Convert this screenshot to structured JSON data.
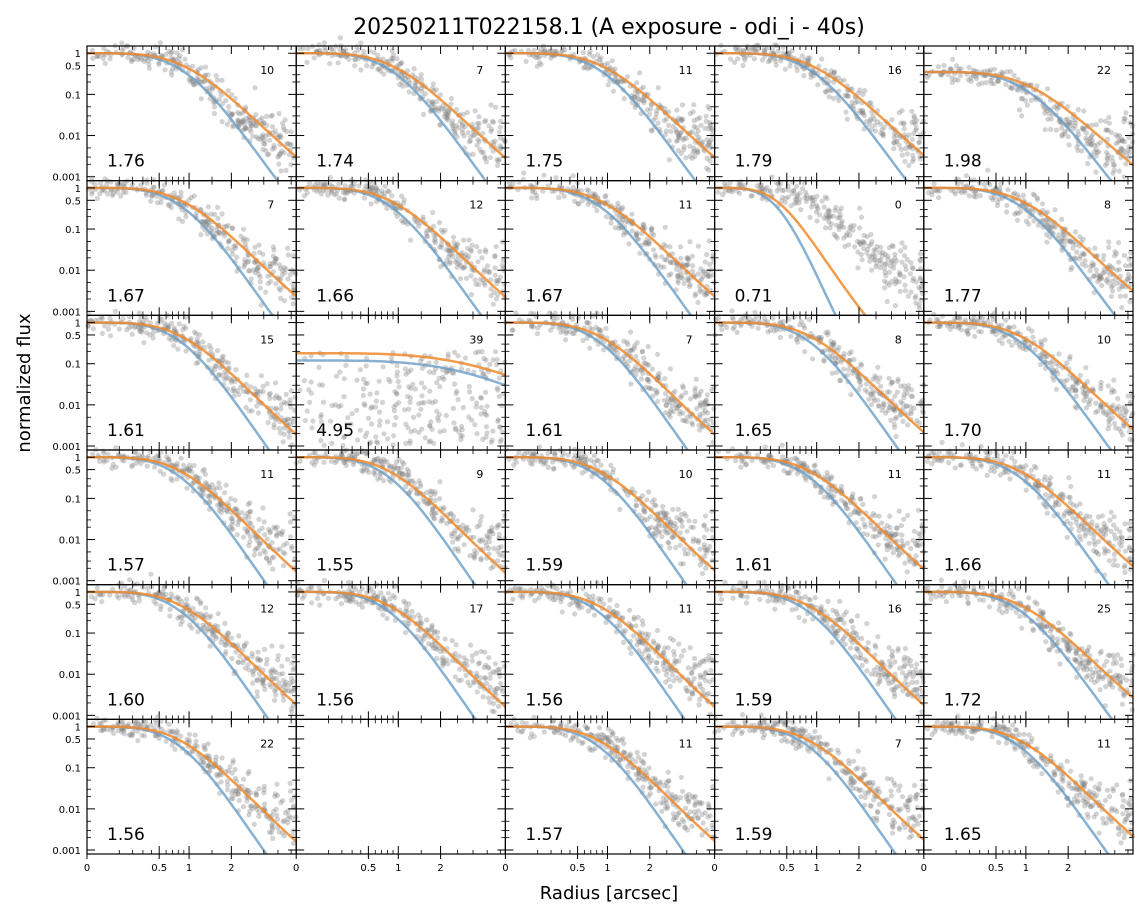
{
  "chart_data": {
    "type": "scatter",
    "title": "20250211T022158.1 (A exposure - odi_i - 40s)",
    "xlabel": "Radius [arcsec]",
    "ylabel": "normalized flux",
    "xscale": "sqrt",
    "yscale": "log",
    "xlim": [
      0,
      4.2
    ],
    "ylim": [
      0.0008,
      1.5
    ],
    "x_ticks": [
      0,
      0.5,
      1,
      2
    ],
    "x_tick_labels": [
      "0",
      "0.5",
      "1",
      "2"
    ],
    "y_ticks": [
      1,
      0.5,
      0.1,
      0.01,
      0.001
    ],
    "y_tick_labels": [
      "1",
      "0.5",
      "0.1",
      "0.01",
      "0.001"
    ],
    "grid": false,
    "series_colors": {
      "data_points": "#808080",
      "fit_blue": "#6a9ec5",
      "fit_orange": "#f08a2c"
    },
    "grid_rows": 6,
    "grid_cols": 5,
    "panels": [
      {
        "fwhm": "1.76",
        "count": "10"
      },
      {
        "fwhm": "1.74",
        "count": "7"
      },
      {
        "fwhm": "1.75",
        "count": "11"
      },
      {
        "fwhm": "1.79",
        "count": "16"
      },
      {
        "fwhm": "1.98",
        "count": "22"
      },
      {
        "fwhm": "1.67",
        "count": "7"
      },
      {
        "fwhm": "1.66",
        "count": "12"
      },
      {
        "fwhm": "1.67",
        "count": "11"
      },
      {
        "fwhm": "0.71",
        "count": "0"
      },
      {
        "fwhm": "1.77",
        "count": "8"
      },
      {
        "fwhm": "1.61",
        "count": "15"
      },
      {
        "fwhm": "4.95",
        "count": "39"
      },
      {
        "fwhm": "1.61",
        "count": "7"
      },
      {
        "fwhm": "1.65",
        "count": "8"
      },
      {
        "fwhm": "1.70",
        "count": "10"
      },
      {
        "fwhm": "1.57",
        "count": "11"
      },
      {
        "fwhm": "1.55",
        "count": "9"
      },
      {
        "fwhm": "1.59",
        "count": "10"
      },
      {
        "fwhm": "1.61",
        "count": "11"
      },
      {
        "fwhm": "1.66",
        "count": "11"
      },
      {
        "fwhm": "1.60",
        "count": "12"
      },
      {
        "fwhm": "1.56",
        "count": "17"
      },
      {
        "fwhm": "1.56",
        "count": "11"
      },
      {
        "fwhm": "1.59",
        "count": "16"
      },
      {
        "fwhm": "1.72",
        "count": "25"
      },
      {
        "fwhm": "1.56",
        "count": "22"
      },
      {
        "fwhm": "",
        "count": "",
        "empty": true
      },
      {
        "fwhm": "1.57",
        "count": "11"
      },
      {
        "fwhm": "1.59",
        "count": "7"
      },
      {
        "fwhm": "1.65",
        "count": "11"
      }
    ]
  }
}
